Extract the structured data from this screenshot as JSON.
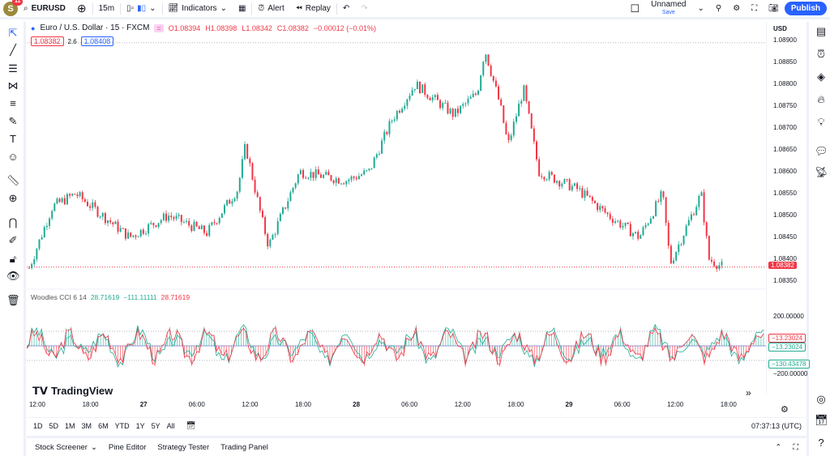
{
  "topbar": {
    "avatar": "S",
    "badge": "11",
    "symbol": "EURUSD",
    "interval": "15m",
    "indicators": "Indicators",
    "alert": "Alert",
    "replay": "Replay",
    "layout_name": "Unnamed",
    "save": "Save",
    "publish": "Publish"
  },
  "legend": {
    "title": "Euro / U.S. Dollar · 15 · FXCM",
    "o": "O1.08394",
    "h": "H1.08398",
    "l": "L1.08342",
    "c": "C1.08382",
    "change": "−0.00012 (−0.01%)",
    "bid": "1.08382",
    "spread": "2.6",
    "ask": "1.08408"
  },
  "indicator": {
    "name": "Woodles CCI 6 14",
    "v1": "28.71619",
    "v2": "−111.11111",
    "v3": "28.71619"
  },
  "price_axis": {
    "currency": "USD",
    "labels": [
      "1.08900",
      "1.08850",
      "1.08800",
      "1.08750",
      "1.08700",
      "1.08650",
      "1.08600",
      "1.08550",
      "1.08500",
      "1.08450",
      "1.08400",
      "1.08350"
    ],
    "current": "1.08382"
  },
  "cci_axis": {
    "top": "200.00000",
    "bottom": "−200.00000",
    "tag1": "−13.23024",
    "tag2": "−13.23024",
    "tag3": "−130.43478"
  },
  "time_axis": [
    "12:00",
    "18:00",
    "27",
    "06:00",
    "12:00",
    "18:00",
    "28",
    "06:00",
    "12:00",
    "18:00",
    "29",
    "06:00",
    "12:00",
    "18:00"
  ],
  "range": {
    "items": [
      "1D",
      "5D",
      "1M",
      "3M",
      "6M",
      "YTD",
      "1Y",
      "5Y",
      "All"
    ],
    "clock": "07:37:13 (UTC)"
  },
  "bottom": {
    "tabs": [
      "Stock Screener",
      "Pine Editor",
      "Strategy Tester",
      "Trading Panel"
    ]
  },
  "watermark": "TradingView",
  "colors": {
    "up": "#22ab94",
    "down": "#f23645",
    "accent": "#2962ff"
  },
  "price_path": [
    [
      0,
      1.0838
    ],
    [
      3,
      1.0852
    ],
    [
      6,
      1.0855
    ],
    [
      13,
      1.0845
    ],
    [
      18,
      1.085
    ],
    [
      23,
      1.0846
    ],
    [
      27,
      1.0856
    ],
    [
      28,
      1.0866
    ],
    [
      30,
      1.085
    ],
    [
      31,
      1.0843
    ],
    [
      35,
      1.086
    ],
    [
      41,
      1.0858
    ],
    [
      44,
      1.086
    ],
    [
      47,
      1.0872
    ],
    [
      50,
      1.088
    ],
    [
      55,
      1.0873
    ],
    [
      58,
      1.0878
    ],
    [
      59,
      1.0888
    ],
    [
      61,
      1.0875
    ],
    [
      62,
      1.0866
    ],
    [
      64,
      1.0879
    ],
    [
      66,
      1.086
    ],
    [
      71,
      1.0856
    ],
    [
      75,
      1.085
    ],
    [
      79,
      1.0845
    ],
    [
      82,
      1.0855
    ],
    [
      83,
      1.0839
    ],
    [
      87,
      1.0855
    ],
    [
      88,
      1.084
    ],
    [
      90,
      1.0838
    ]
  ]
}
